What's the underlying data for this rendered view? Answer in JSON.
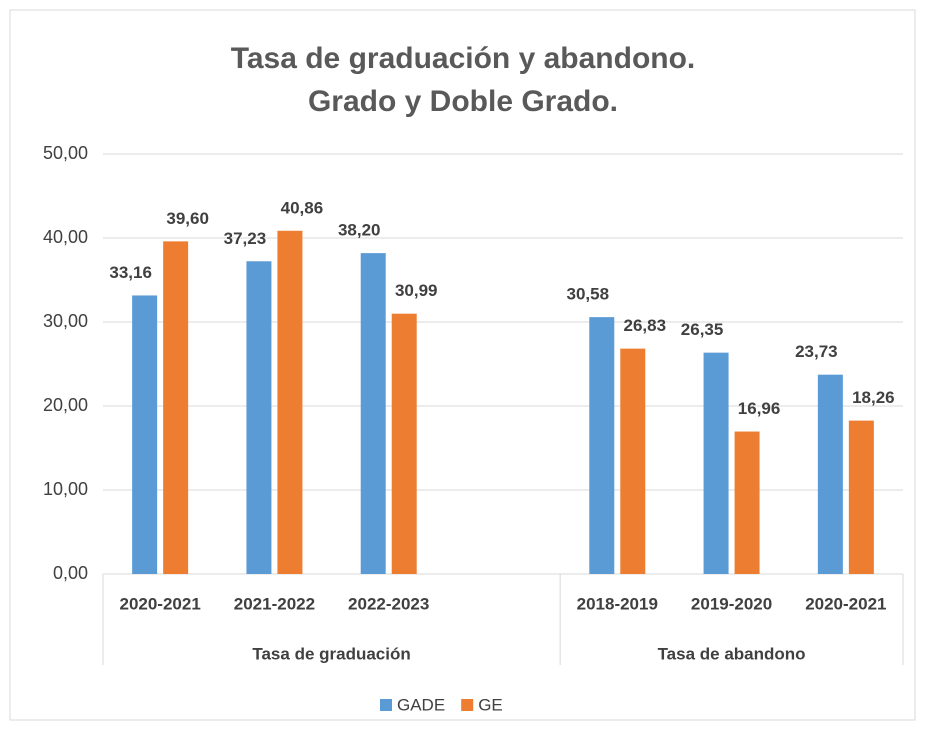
{
  "chart_data": {
    "type": "bar",
    "title": [
      "Tasa de graduación y abandono.",
      "Grado y Doble Grado."
    ],
    "categories": [
      "2020-2021",
      "2021-2022",
      "2022-2023",
      null,
      "2018-2019",
      "2019-2020",
      "2020-2021"
    ],
    "groups": [
      {
        "name": "Tasa de graduación",
        "count": 4
      },
      {
        "name": "Tasa de abandono",
        "count": 3
      }
    ],
    "series": [
      {
        "name": "GADE",
        "color": "#5b9bd5",
        "values": [
          33.16,
          37.23,
          38.2,
          null,
          30.58,
          26.35,
          23.73
        ],
        "value_labels": [
          "33,16",
          "37,23",
          "38,20",
          null,
          "30,58",
          "26,35",
          "23,73"
        ]
      },
      {
        "name": "GE",
        "color": "#ed7d31",
        "values": [
          39.6,
          40.86,
          30.99,
          null,
          26.83,
          16.96,
          18.26
        ],
        "value_labels": [
          "39,60",
          "40,86",
          "30,99",
          null,
          "26,83",
          "16,96",
          "18,26"
        ]
      }
    ],
    "ylim": [
      0,
      50
    ],
    "yticks": [
      {
        "value": 0,
        "label": "0,00"
      },
      {
        "value": 10,
        "label": "10,00"
      },
      {
        "value": 20,
        "label": "20,00"
      },
      {
        "value": 30,
        "label": "30,00"
      },
      {
        "value": 40,
        "label": "40,00"
      },
      {
        "value": 50,
        "label": "50,00"
      }
    ],
    "grid": true,
    "legend": "bottom"
  }
}
